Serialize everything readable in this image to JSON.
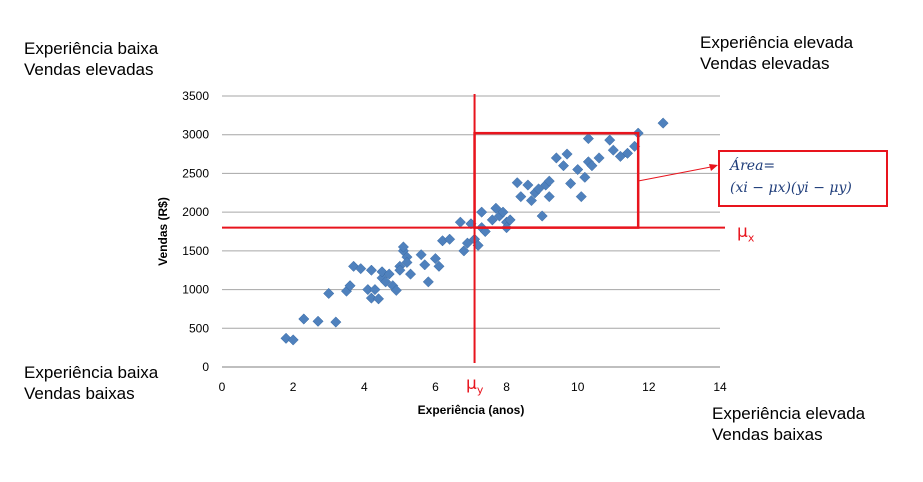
{
  "quadrants": {
    "top_left": [
      "Experiência baixa",
      "Vendas elevadas"
    ],
    "top_right": [
      "Experiência elevada",
      "Vendas elevadas"
    ],
    "bottom_left": [
      "Experiência baixa",
      "Vendas baixas"
    ],
    "bottom_right": [
      "Experiência elevada",
      "Vendas baixas"
    ]
  },
  "annotations": {
    "mu_x_symbol": "μ",
    "mu_x_sub": "x",
    "mu_y_symbol": "μ",
    "mu_y_sub": "y",
    "formula_line1": "Área=",
    "formula_line2": "(xi − μx)(yi − μy)"
  },
  "colors": {
    "points": "#4f81bd",
    "accent": "#e8141d",
    "grid": "#a6a6a6",
    "formula": "#1f3d7a"
  },
  "chart_data": {
    "type": "scatter",
    "xlabel": "Experiência (anos)",
    "ylabel": "Vendas (R$)",
    "xlim": [
      0,
      14
    ],
    "ylim": [
      0,
      3500
    ],
    "xticks": [
      0,
      2,
      4,
      6,
      8,
      10,
      12,
      14
    ],
    "yticks": [
      0,
      500,
      1000,
      1500,
      2000,
      2500,
      3000,
      3500
    ],
    "grid": "horizontal",
    "mean_x": 7.1,
    "mean_y": 1800,
    "highlight_rect": {
      "x_from": 7.1,
      "x_to": 11.7,
      "y_from": 1800,
      "y_to": 3020
    },
    "points": [
      [
        1.8,
        370
      ],
      [
        2.0,
        350
      ],
      [
        2.3,
        620
      ],
      [
        2.7,
        590
      ],
      [
        3.0,
        950
      ],
      [
        3.2,
        580
      ],
      [
        3.5,
        980
      ],
      [
        3.6,
        1050
      ],
      [
        3.7,
        1300
      ],
      [
        3.9,
        1270
      ],
      [
        4.1,
        1000
      ],
      [
        4.2,
        1250
      ],
      [
        4.2,
        890
      ],
      [
        4.3,
        1000
      ],
      [
        4.4,
        880
      ],
      [
        4.5,
        1150
      ],
      [
        4.5,
        1230
      ],
      [
        4.6,
        1100
      ],
      [
        4.7,
        1200
      ],
      [
        4.8,
        1050
      ],
      [
        4.9,
        990
      ],
      [
        5.0,
        1300
      ],
      [
        5.0,
        1250
      ],
      [
        5.1,
        1500
      ],
      [
        5.1,
        1550
      ],
      [
        5.2,
        1420
      ],
      [
        5.2,
        1350
      ],
      [
        5.3,
        1200
      ],
      [
        5.6,
        1450
      ],
      [
        5.7,
        1320
      ],
      [
        5.8,
        1100
      ],
      [
        6.0,
        1400
      ],
      [
        6.1,
        1300
      ],
      [
        6.2,
        1630
      ],
      [
        6.4,
        1650
      ],
      [
        6.7,
        1870
      ],
      [
        6.8,
        1500
      ],
      [
        6.9,
        1600
      ],
      [
        7.0,
        1850
      ],
      [
        7.1,
        1650
      ],
      [
        7.2,
        1570
      ],
      [
        7.3,
        2000
      ],
      [
        7.3,
        1800
      ],
      [
        7.4,
        1750
      ],
      [
        7.6,
        1900
      ],
      [
        7.7,
        2050
      ],
      [
        7.8,
        1950
      ],
      [
        7.9,
        2000
      ],
      [
        8.0,
        1870
      ],
      [
        8.0,
        1800
      ],
      [
        8.1,
        1900
      ],
      [
        8.3,
        2380
      ],
      [
        8.4,
        2200
      ],
      [
        8.6,
        2350
      ],
      [
        8.7,
        2150
      ],
      [
        8.8,
        2250
      ],
      [
        8.9,
        2300
      ],
      [
        9.0,
        1950
      ],
      [
        9.1,
        2350
      ],
      [
        9.2,
        2400
      ],
      [
        9.2,
        2200
      ],
      [
        9.4,
        2700
      ],
      [
        9.6,
        2600
      ],
      [
        9.7,
        2750
      ],
      [
        9.8,
        2370
      ],
      [
        10.0,
        2550
      ],
      [
        10.1,
        2200
      ],
      [
        10.2,
        2450
      ],
      [
        10.3,
        2650
      ],
      [
        10.3,
        2950
      ],
      [
        10.4,
        2600
      ],
      [
        10.6,
        2700
      ],
      [
        10.9,
        2930
      ],
      [
        11.0,
        2800
      ],
      [
        11.2,
        2720
      ],
      [
        11.4,
        2760
      ],
      [
        11.6,
        2850
      ],
      [
        11.7,
        3020
      ],
      [
        12.4,
        3150
      ]
    ]
  }
}
